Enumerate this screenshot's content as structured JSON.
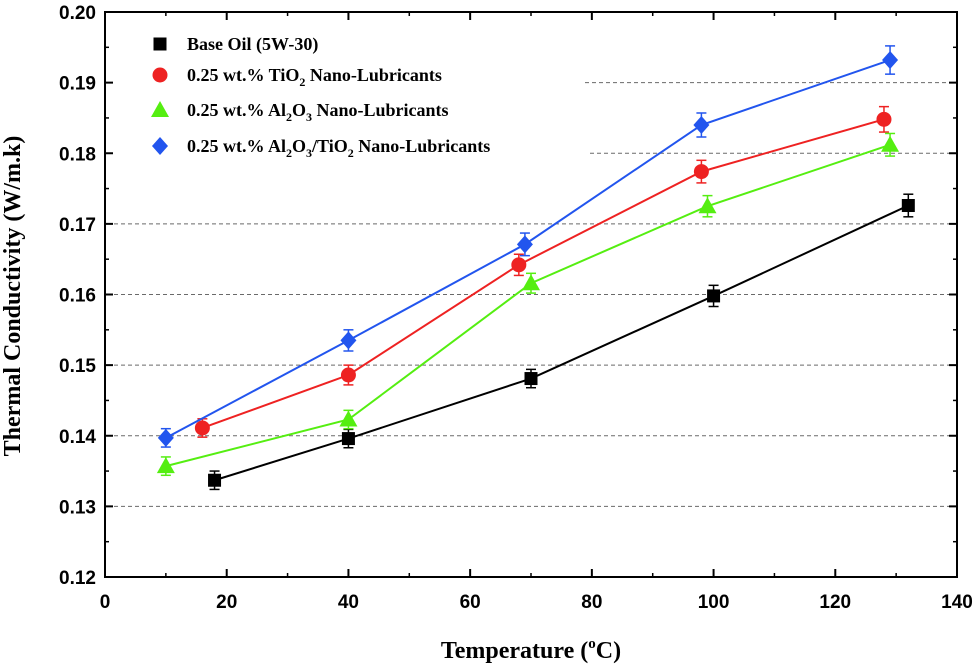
{
  "chart_data": {
    "type": "line",
    "xlabel": "Temperature (oC)",
    "xlabel_parts": {
      "pre": "Temperature (",
      "sup": "o",
      "post": "C)"
    },
    "ylabel": "Thermal Conductivity (W/m.k)",
    "xlim": [
      0,
      140
    ],
    "ylim": [
      0.12,
      0.2
    ],
    "xticks": [
      "0",
      "20",
      "40",
      "60",
      "80",
      "100",
      "120",
      "140"
    ],
    "yticks": [
      "0.12",
      "0.13",
      "0.14",
      "0.15",
      "0.16",
      "0.17",
      "0.18",
      "0.19",
      "0.20"
    ],
    "grid": "dashed horizontal",
    "legend_position": "top-left",
    "series": [
      {
        "name": "Base Oil (5W-30)",
        "name_parts": [
          [
            "Base Oil (5W-30)",
            "n"
          ]
        ],
        "color": "#000000",
        "marker": "square",
        "x": [
          18,
          40,
          70,
          100,
          132
        ],
        "y": [
          0.1337,
          0.1396,
          0.1481,
          0.1598,
          0.1726
        ],
        "err": [
          0.0013,
          0.0013,
          0.0013,
          0.0015,
          0.0016
        ]
      },
      {
        "name": "0.25 wt.% TiO2 Nano-Lubricants",
        "name_parts": [
          [
            "0.25 wt.% TiO",
            "n"
          ],
          [
            "2",
            "s"
          ],
          [
            " Nano-Lubricants",
            "n"
          ]
        ],
        "color": "#ee2222",
        "marker": "circle",
        "x": [
          16,
          40,
          68,
          98,
          128
        ],
        "y": [
          0.1411,
          0.1486,
          0.1642,
          0.1774,
          0.1848
        ],
        "err": [
          0.0013,
          0.0014,
          0.0015,
          0.0016,
          0.0018
        ]
      },
      {
        "name": "0.25 wt.% Al2O3 Nano-Lubricants",
        "name_parts": [
          [
            "0.25 wt.% Al",
            "n"
          ],
          [
            "2",
            "s"
          ],
          [
            "O",
            "n"
          ],
          [
            "3",
            "s"
          ],
          [
            " Nano-Lubricants",
            "n"
          ]
        ],
        "color": "#55ee11",
        "marker": "triangle",
        "x": [
          10,
          40,
          70,
          99,
          129
        ],
        "y": [
          0.1357,
          0.1423,
          0.1616,
          0.1725,
          0.1812
        ],
        "err": [
          0.0013,
          0.0013,
          0.0014,
          0.0015,
          0.0016
        ]
      },
      {
        "name": "0.25 wt.% Al2O3/TiO2 Nano-Lubricants",
        "name_parts": [
          [
            "0.25 wt.% Al",
            "n"
          ],
          [
            "2",
            "s"
          ],
          [
            "O",
            "n"
          ],
          [
            "3",
            "s"
          ],
          [
            "/TiO",
            "n"
          ],
          [
            "2",
            "s"
          ],
          [
            " Nano-Lubricants",
            "n"
          ]
        ],
        "color": "#2255ee",
        "marker": "diamond",
        "x": [
          10,
          40,
          69,
          98,
          129
        ],
        "y": [
          0.1397,
          0.1535,
          0.1671,
          0.184,
          0.1932
        ],
        "err": [
          0.0013,
          0.0015,
          0.0016,
          0.0017,
          0.002
        ]
      }
    ]
  }
}
